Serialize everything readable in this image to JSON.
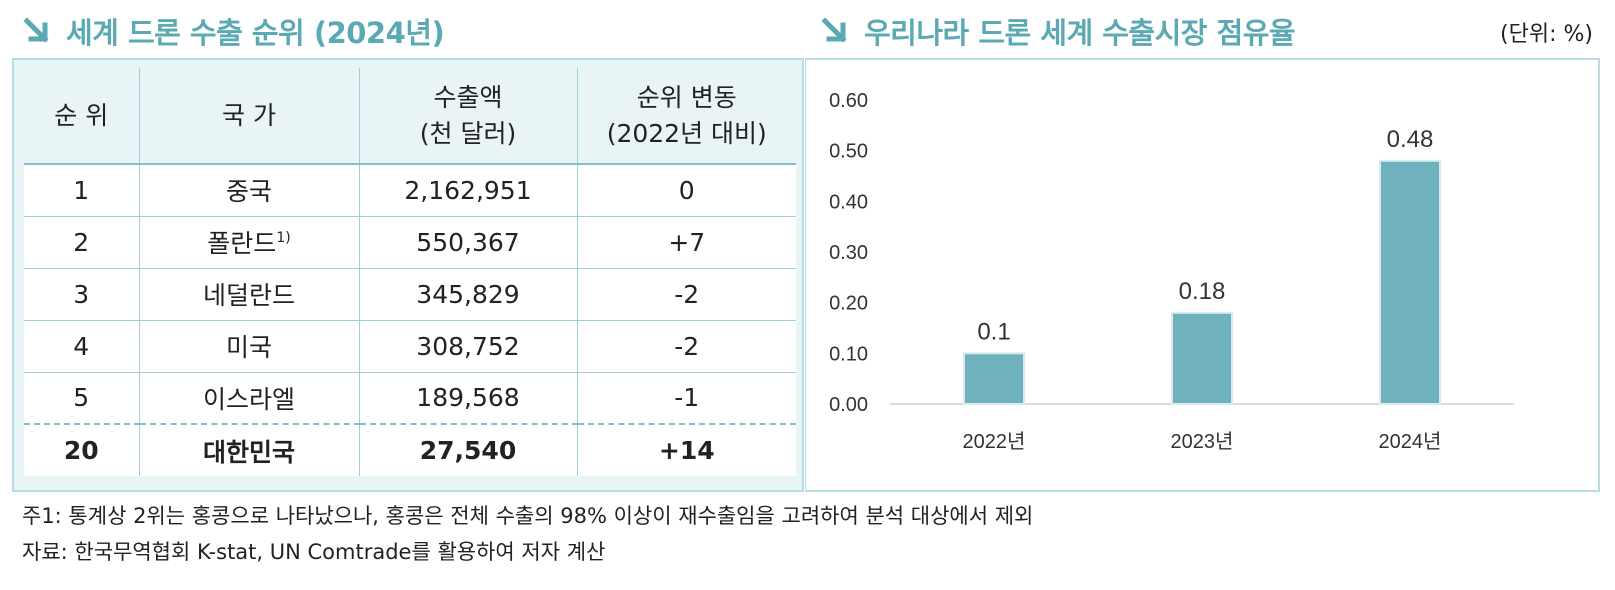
{
  "left_title": "세계 드론 수출 순위 (2024년)",
  "right_title": "우리나라 드론 세계 수출시장 점유율",
  "unit_note": "(단위: %)",
  "table": {
    "headers": {
      "rank": "순 위",
      "country": "국 가",
      "amount_line1": "수출액",
      "amount_line2": "(천 달러)",
      "change_line1": "순위 변동",
      "change_line2": "(2022년 대비)"
    },
    "rows": [
      {
        "rank": "1",
        "country": "중국",
        "sup": "",
        "amount": "2,162,951",
        "change": "0"
      },
      {
        "rank": "2",
        "country": "폴란드",
        "sup": "1)",
        "amount": "550,367",
        "change": "+7"
      },
      {
        "rank": "3",
        "country": "네덜란드",
        "sup": "",
        "amount": "345,829",
        "change": "-2"
      },
      {
        "rank": "4",
        "country": "미국",
        "sup": "",
        "amount": "308,752",
        "change": "-2"
      },
      {
        "rank": "5",
        "country": "이스라엘",
        "sup": "",
        "amount": "189,568",
        "change": "-1"
      }
    ],
    "korea_row": {
      "rank": "20",
      "country": "대한민국",
      "amount": "27,540",
      "change": "+14"
    }
  },
  "chart_data": {
    "type": "bar",
    "categories": [
      "2022년",
      "2023년",
      "2024년"
    ],
    "values": [
      0.1,
      0.18,
      0.48
    ],
    "value_labels": [
      "0.1",
      "0.18",
      "0.48"
    ],
    "title": "우리나라 드론 세계 수출시장 점유율",
    "xlabel": "",
    "ylabel": "",
    "ylim": [
      0,
      0.6
    ],
    "yticks": [
      "0.00",
      "0.10",
      "0.20",
      "0.30",
      "0.40",
      "0.50",
      "0.60"
    ],
    "grid": false,
    "bar_color": "#6fb2bd"
  },
  "notes": {
    "note1": "주1: 통계상 2위는 홍콩으로 나타났으나, 홍콩은 전체 수출의 98% 이상이 재수출임을 고려하여 분석 대상에서 제외",
    "note2": "자료: 한국무역협회 K-stat, UN Comtrade를 활용하여 저자 계산"
  },
  "colors": {
    "accent": "#5aa9b3",
    "panel_bg": "#e9f4f6",
    "border": "#b7dde3"
  }
}
